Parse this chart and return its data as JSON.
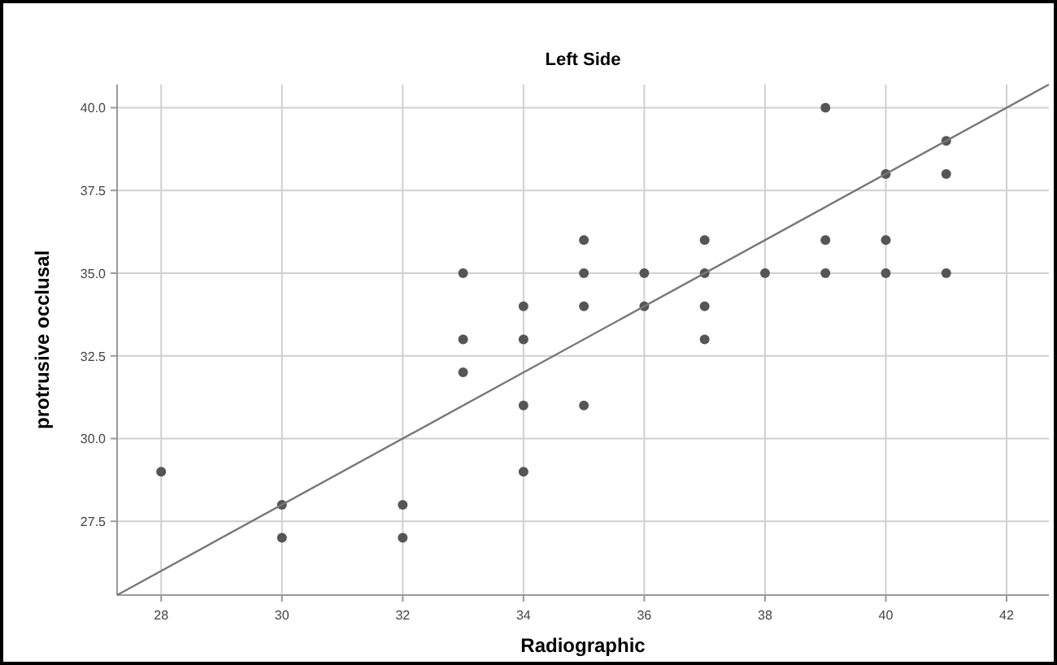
{
  "chart_data": {
    "type": "scatter",
    "title": "Left Side",
    "xlabel": "Radiographic",
    "ylabel": "protrusive occlusal",
    "xlim": [
      27.27,
      42.7
    ],
    "ylim": [
      25.27,
      40.7
    ],
    "xticks": [
      28,
      30,
      32,
      34,
      36,
      38,
      40,
      42
    ],
    "yticks": [
      {
        "value": 27.5,
        "label": "27.5"
      },
      {
        "value": 30,
        "label": "30.0"
      },
      {
        "value": 32.5,
        "label": "32.5"
      },
      {
        "value": 35,
        "label": "35.0"
      },
      {
        "value": 37.5,
        "label": "37.5"
      },
      {
        "value": 40,
        "label": "40.0"
      }
    ],
    "grid": true,
    "marker": "circle",
    "series": [
      {
        "color": "#555555",
        "x": [
          28,
          30,
          30,
          32,
          32,
          33,
          33,
          33,
          34,
          34,
          34,
          34,
          35,
          35,
          35,
          35,
          36,
          36,
          37,
          37,
          37,
          37,
          38,
          39,
          39,
          39,
          40,
          40,
          40,
          41,
          41,
          41
        ],
        "values": [
          29,
          28,
          27,
          28,
          27,
          35,
          33,
          32,
          34,
          33,
          31,
          29,
          36,
          35,
          34,
          31,
          35,
          34,
          36,
          35,
          34,
          33,
          35,
          40,
          36,
          35,
          38,
          36,
          35,
          39,
          38,
          35
        ]
      },
      {
        "type": "line",
        "color": "#777777",
        "marker": "none",
        "x": [
          27.27,
          42.7
        ],
        "values": [
          25.27,
          40.7
        ]
      }
    ]
  }
}
